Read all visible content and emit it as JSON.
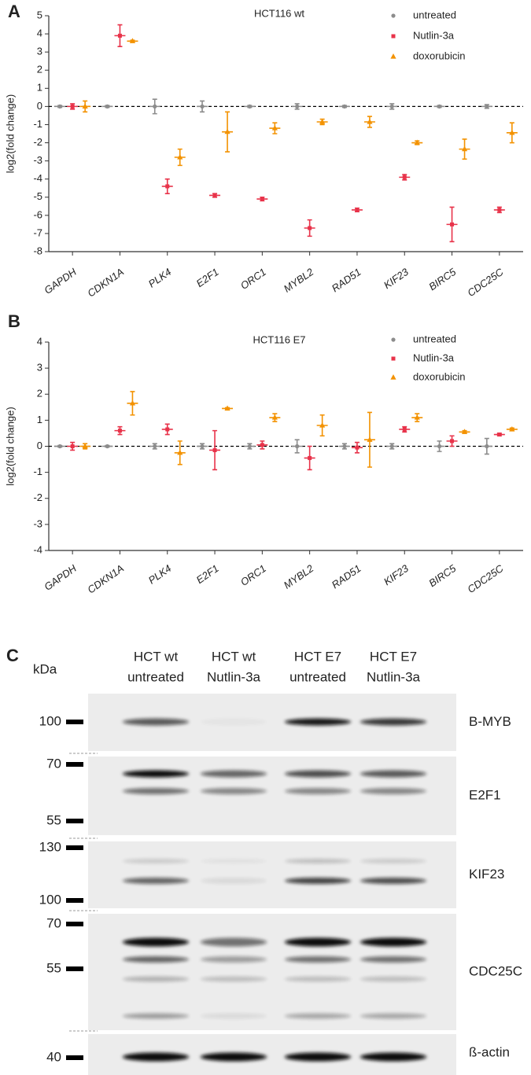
{
  "chart_data": [
    {
      "type": "dotplot",
      "panel": "A",
      "title": "HCT116 wt",
      "y_label": "log2(fold change)",
      "categories": [
        "GAPDH",
        "CDKN1A",
        "PLK4",
        "E2F1",
        "ORC1",
        "MYBL2",
        "RAD51",
        "KIF23",
        "BIRC5",
        "CDC25C"
      ],
      "series": [
        {
          "name": "untreated",
          "color": "#8c8c8c",
          "marker": "circle",
          "values": [
            0,
            0,
            0,
            0,
            0,
            0,
            0,
            0,
            0,
            0
          ],
          "errors": [
            0.05,
            0.05,
            0.4,
            0.3,
            0.05,
            0.15,
            0.05,
            0.15,
            0.05,
            0.1
          ]
        },
        {
          "name": "Nutlin-3a",
          "color": "#e8334a",
          "marker": "square",
          "values": [
            0,
            3.9,
            -4.4,
            -4.9,
            -5.1,
            -6.7,
            -5.7,
            -3.9,
            -6.5,
            -5.7
          ],
          "errors": [
            0.15,
            0.6,
            0.4,
            0.1,
            0.1,
            0.45,
            0.1,
            0.15,
            0.95,
            0.15
          ]
        },
        {
          "name": "doxorubicin",
          "color": "#f39200",
          "marker": "triangle",
          "values": [
            0,
            3.6,
            -2.8,
            -1.4,
            -1.2,
            -0.85,
            -0.85,
            -2.0,
            -2.35,
            -1.45
          ],
          "errors": [
            0.3,
            0.05,
            0.45,
            1.1,
            0.3,
            0.15,
            0.3,
            0.1,
            0.55,
            0.55
          ]
        }
      ],
      "ylim": [
        -8,
        5
      ],
      "yticks": [
        -8,
        -7,
        -6,
        -5,
        -4,
        -3,
        -2,
        -1,
        0,
        1,
        2,
        3,
        4,
        5
      ],
      "zero_line": true,
      "legend": "upper right"
    },
    {
      "type": "dotplot",
      "panel": "B",
      "title": "HCT116 E7",
      "y_label": "log2(fold change)",
      "categories": [
        "GAPDH",
        "CDKN1A",
        "PLK4",
        "E2F1",
        "ORC1",
        "MYBL2",
        "RAD51",
        "KIF23",
        "BIRC5",
        "CDC25C"
      ],
      "series": [
        {
          "name": "untreated",
          "color": "#8c8c8c",
          "marker": "circle",
          "values": [
            0,
            0,
            0,
            0,
            0,
            0,
            0,
            0,
            0,
            0
          ],
          "errors": [
            0.03,
            0.03,
            0.1,
            0.1,
            0.1,
            0.25,
            0.1,
            0.1,
            0.2,
            0.3
          ]
        },
        {
          "name": "Nutlin-3a",
          "color": "#e8334a",
          "marker": "square",
          "values": [
            0,
            0.6,
            0.65,
            -0.15,
            0.05,
            -0.45,
            -0.05,
            0.65,
            0.2,
            0.45
          ],
          "errors": [
            0.15,
            0.15,
            0.2,
            0.75,
            0.15,
            0.45,
            0.2,
            0.1,
            0.2,
            0.05
          ]
        },
        {
          "name": "doxorubicin",
          "color": "#f39200",
          "marker": "triangle",
          "values": [
            0,
            1.65,
            -0.25,
            1.45,
            1.1,
            0.8,
            0.25,
            1.1,
            0.55,
            0.65
          ],
          "errors": [
            0.1,
            0.45,
            0.45,
            0.03,
            0.15,
            0.4,
            1.05,
            0.15,
            0.05,
            0.05
          ]
        }
      ],
      "ylim": [
        -4,
        4
      ],
      "yticks": [
        -4,
        -3,
        -2,
        -1,
        0,
        1,
        2,
        3,
        4
      ],
      "zero_line": true,
      "legend": "upper right"
    }
  ],
  "blot": {
    "panel": "C",
    "unit": "kDa",
    "lanes": [
      [
        "HCT wt",
        "untreated"
      ],
      [
        "HCT wt",
        "Nutlin-3a"
      ],
      [
        "HCT E7",
        "untreated"
      ],
      [
        "HCT E7",
        "Nutlin-3a"
      ]
    ],
    "rows": [
      {
        "protein": "B-MYB",
        "markers": [
          "100"
        ]
      },
      {
        "protein": "E2F1",
        "markers": [
          "70",
          "55"
        ]
      },
      {
        "protein": "KIF23",
        "markers": [
          "130",
          "100"
        ]
      },
      {
        "protein": "CDC25C",
        "markers": [
          "70",
          "55"
        ]
      },
      {
        "protein": "ß-actin",
        "markers": [
          "40"
        ]
      }
    ]
  }
}
